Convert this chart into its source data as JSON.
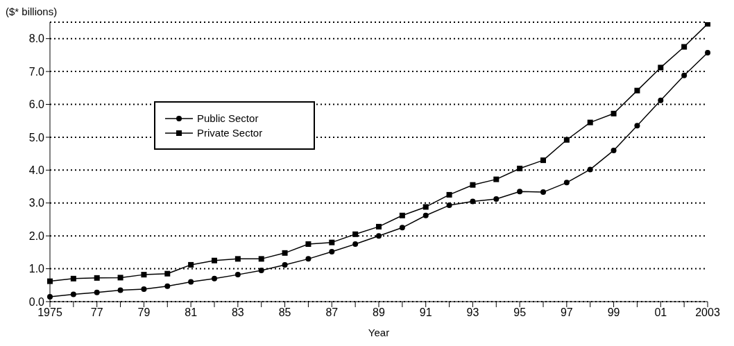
{
  "chart_data": {
    "type": "line",
    "ylabel": "($* billions)",
    "xlabel": "Year",
    "categories": [
      "1975",
      null,
      "77",
      null,
      "79",
      null,
      "81",
      null,
      "83",
      null,
      "85",
      null,
      "87",
      null,
      "89",
      null,
      "91",
      null,
      "93",
      null,
      "95",
      null,
      "97",
      null,
      "99",
      null,
      "01",
      null,
      "2003"
    ],
    "series": [
      {
        "name": "Public Sector",
        "color": "#000000",
        "marker": "circle",
        "values": [
          0.15,
          0.22,
          0.28,
          0.35,
          0.38,
          0.47,
          0.6,
          0.7,
          0.82,
          0.95,
          1.12,
          1.3,
          1.52,
          1.75,
          2.0,
          2.25,
          2.62,
          2.93,
          3.05,
          3.12,
          3.35,
          3.33,
          3.62,
          4.02,
          4.6,
          5.35,
          6.12,
          6.88,
          7.57
        ]
      },
      {
        "name": "Private Sector",
        "color": "#000000",
        "marker": "square",
        "values": [
          0.62,
          0.7,
          0.72,
          0.73,
          0.82,
          0.85,
          1.12,
          1.25,
          1.3,
          1.3,
          1.48,
          1.75,
          1.8,
          2.05,
          2.28,
          2.62,
          2.88,
          3.25,
          3.55,
          3.72,
          4.05,
          4.3,
          4.92,
          5.45,
          5.72,
          6.42,
          7.12,
          7.75,
          8.45
        ]
      }
    ],
    "ylim": [
      0,
      8.5
    ],
    "yticks": [
      {
        "value": 0,
        "label": "0.0"
      },
      {
        "value": 1,
        "label": "1.0"
      },
      {
        "value": 2,
        "label": "2.0"
      },
      {
        "value": 3,
        "label": "3.0"
      },
      {
        "value": 4,
        "label": "4.0"
      },
      {
        "value": 5,
        "label": "5.0"
      },
      {
        "value": 6,
        "label": "6.0"
      },
      {
        "value": 7,
        "label": "7.0"
      },
      {
        "value": 8,
        "label": "8.0"
      }
    ],
    "grid": "y",
    "line_style": "solid",
    "legend": "left"
  }
}
